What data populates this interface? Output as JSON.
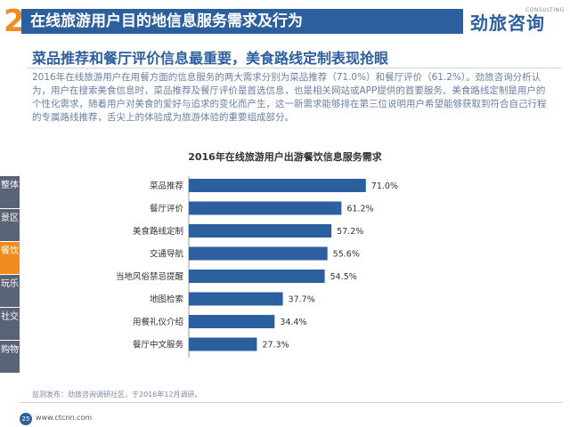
{
  "header": {
    "section_number": "2",
    "title": "在线旅游用户目的地信息服务需求及行为",
    "logo_text": "劲旅咨询",
    "logo_sub": "CONSULTING"
  },
  "subheading": "菜品推荐和餐厅评价信息最重要，美食路线定制表现抢眼",
  "paragraph": "2016年在线旅游用户在用餐方面的信息服务的两大需求分别为菜品推荐（71.0%）和餐厅评价（61.2%）。劲旅咨询分析认为，用户在搜索美食信息时，菜品推荐及餐厅评价是首选信息，也是相关网站或APP提供的首要服务。美食路线定制是用户的个性化需求，随着用户对美食的爱好与追求的变化而产生，这一新需求能够排在第三位说明用户希望能够获取到符合自己行程的专属路线推荐，舌尖上的体验成为旅游体验的重要组成部分。",
  "sidebar": {
    "items": [
      {
        "label": "整体",
        "active": false
      },
      {
        "label": "景区",
        "active": false
      },
      {
        "label": "餐饮",
        "active": true
      },
      {
        "label": "玩乐",
        "active": false
      },
      {
        "label": "社交",
        "active": false
      },
      {
        "label": "购物",
        "active": false
      }
    ]
  },
  "chart_data": {
    "type": "bar",
    "orientation": "horizontal",
    "title": "2016年在线旅游用户出游餐饮信息服务需求",
    "categories": [
      "菜品推荐",
      "餐厅评价",
      "美食路线定制",
      "交通导航",
      "当地风俗禁忌提醒",
      "地图检索",
      "用餐礼仪介绍",
      "餐厅中文服务"
    ],
    "values": [
      71.0,
      61.2,
      57.2,
      55.6,
      54.5,
      37.7,
      34.4,
      27.3
    ],
    "value_labels": [
      "71.0%",
      "61.2%",
      "57.2%",
      "55.6%",
      "54.5%",
      "37.7%",
      "34.4%",
      "27.3%"
    ],
    "xlim": [
      0,
      100
    ],
    "bar_color": "#2c5f9e",
    "grid": false,
    "legend": false
  },
  "footnote": "监测发布：劲旅咨询调研社区，于2016年12月调研。",
  "footer": {
    "page": "25",
    "site": "www.ctcnn.com"
  },
  "colors": {
    "accent": "#f28c1e",
    "brand": "#2c5f9e",
    "sidebar": "#5a6476"
  }
}
